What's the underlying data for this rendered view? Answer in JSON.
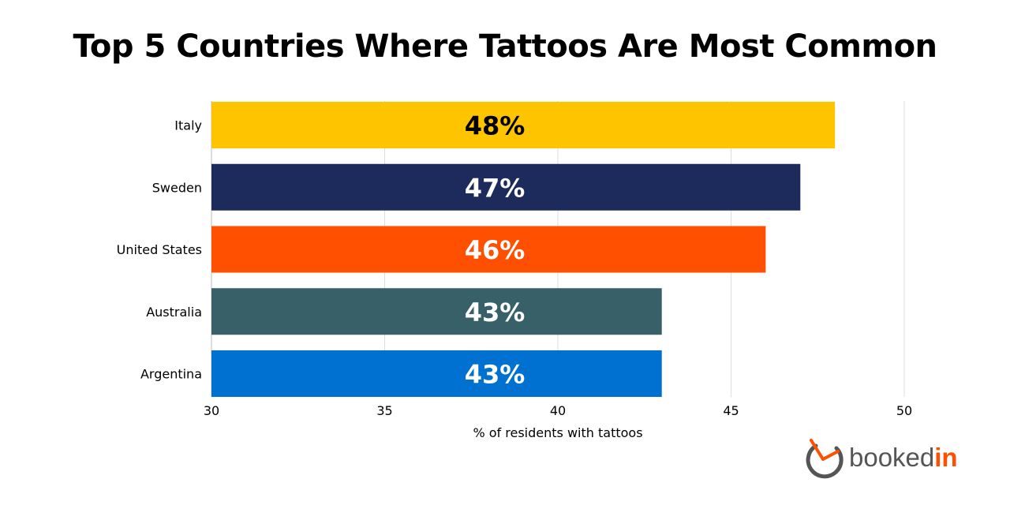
{
  "chart_data": {
    "type": "bar",
    "orientation": "horizontal",
    "title": "Top 5 Countries Where Tattoos Are Most Common",
    "xlabel": "% of residents with tattoos",
    "ylabel": "",
    "categories": [
      "Italy",
      "Sweden",
      "United States",
      "Australia",
      "Argentina"
    ],
    "values": [
      48,
      47,
      46,
      43,
      43
    ],
    "data_labels": [
      "48%",
      "47%",
      "46%",
      "43%",
      "43%"
    ],
    "colors": [
      "#ffc400",
      "#1c2a5c",
      "#ff4f00",
      "#386068",
      "#0071d0"
    ],
    "label_colors": [
      "#000000",
      "#ffffff",
      "#ffffff",
      "#ffffff",
      "#ffffff"
    ],
    "xlim": [
      30,
      50
    ],
    "xticks": [
      "30",
      "35",
      "40",
      "45",
      "50"
    ],
    "grid": true,
    "legend": "none"
  },
  "logo": {
    "text_main": "booked",
    "text_accent": "in",
    "accent_color": "#ff4f00"
  }
}
